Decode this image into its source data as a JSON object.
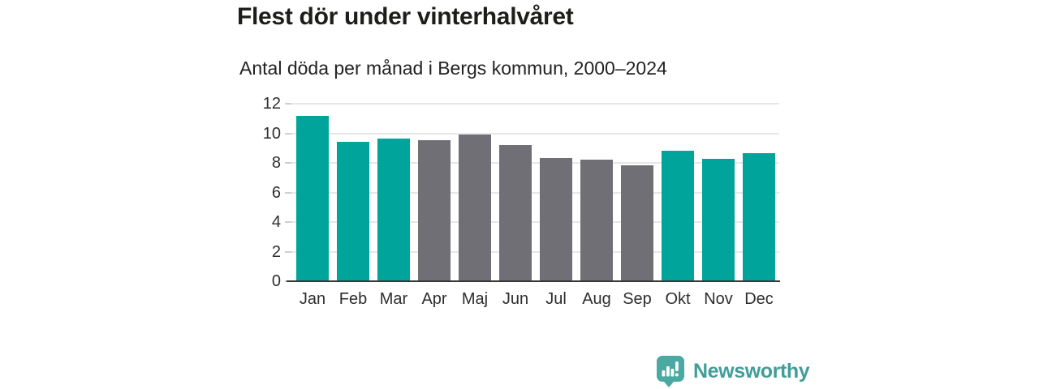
{
  "title": "Flest dör under vinterhalvåret",
  "subtitle": "Antal döda per månad i Bergs kommun, 2000–2024",
  "colors": {
    "winter_bar": "#00a49b",
    "summer_bar": "#6f6f75",
    "gridline": "#e7e7e7",
    "tick_mark": "#cfcfcf",
    "axis_line": "#383838",
    "title_text": "#1d1d1b",
    "label_text": "#2e2e2e",
    "logo_text": "#3f9e99",
    "logo_icon": "#4ba9a2"
  },
  "branding": {
    "logo_text": "Newsworthy",
    "icon": "bar-chart-speech-bubble-icon"
  },
  "chart_data": {
    "type": "bar",
    "title": "Flest dör under vinterhalvåret",
    "subtitle": "Antal döda per månad i Bergs kommun, 2000–2024",
    "categories": [
      "Jan",
      "Feb",
      "Mar",
      "Apr",
      "Maj",
      "Jun",
      "Jul",
      "Aug",
      "Sep",
      "Okt",
      "Nov",
      "Dec"
    ],
    "values": [
      11.2,
      9.4,
      9.65,
      9.55,
      9.9,
      9.2,
      8.35,
      8.2,
      7.85,
      8.8,
      8.25,
      8.65
    ],
    "bar_groups": [
      "winter",
      "winter",
      "winter",
      "summer",
      "summer",
      "summer",
      "summer",
      "summer",
      "summer",
      "winter",
      "winter",
      "winter"
    ],
    "xlabel": "",
    "ylabel": "",
    "ylim": [
      0,
      12
    ],
    "yticks": [
      0,
      2,
      4,
      6,
      8,
      10,
      12
    ],
    "grid": "horizontal",
    "legend": "none"
  }
}
